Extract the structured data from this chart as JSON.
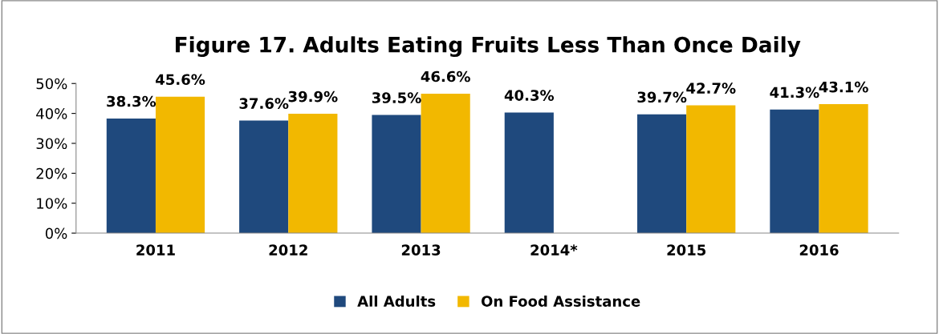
{
  "chart_data": {
    "type": "bar",
    "title": "Figure 17. Adults Eating Fruits Less Than Once Daily",
    "categories": [
      "2011",
      "2012",
      "2013",
      "2014*",
      "2015",
      "2016"
    ],
    "series": [
      {
        "name": "All Adults",
        "color": "#1f497d",
        "values": [
          38.3,
          37.6,
          39.5,
          40.3,
          39.7,
          41.3
        ],
        "value_labels": [
          "38.3%",
          "37.6%",
          "39.5%",
          "40.3%",
          "39.7%",
          "41.3%"
        ]
      },
      {
        "name": "On Food Assistance",
        "color": "#f2b800",
        "values": [
          45.6,
          39.9,
          46.6,
          null,
          42.7,
          43.1
        ],
        "value_labels": [
          "45.6%",
          "39.9%",
          "46.6%",
          null,
          "42.7%",
          "43.1%"
        ]
      }
    ],
    "ylim": [
      0,
      50
    ],
    "yticks": [
      {
        "value": 0,
        "label": "0%"
      },
      {
        "value": 10,
        "label": "10%"
      },
      {
        "value": 20,
        "label": "20%"
      },
      {
        "value": 30,
        "label": "30%"
      },
      {
        "value": 40,
        "label": "40%"
      },
      {
        "value": 50,
        "label": "50%"
      }
    ],
    "grid": false,
    "legend": "bottom"
  }
}
